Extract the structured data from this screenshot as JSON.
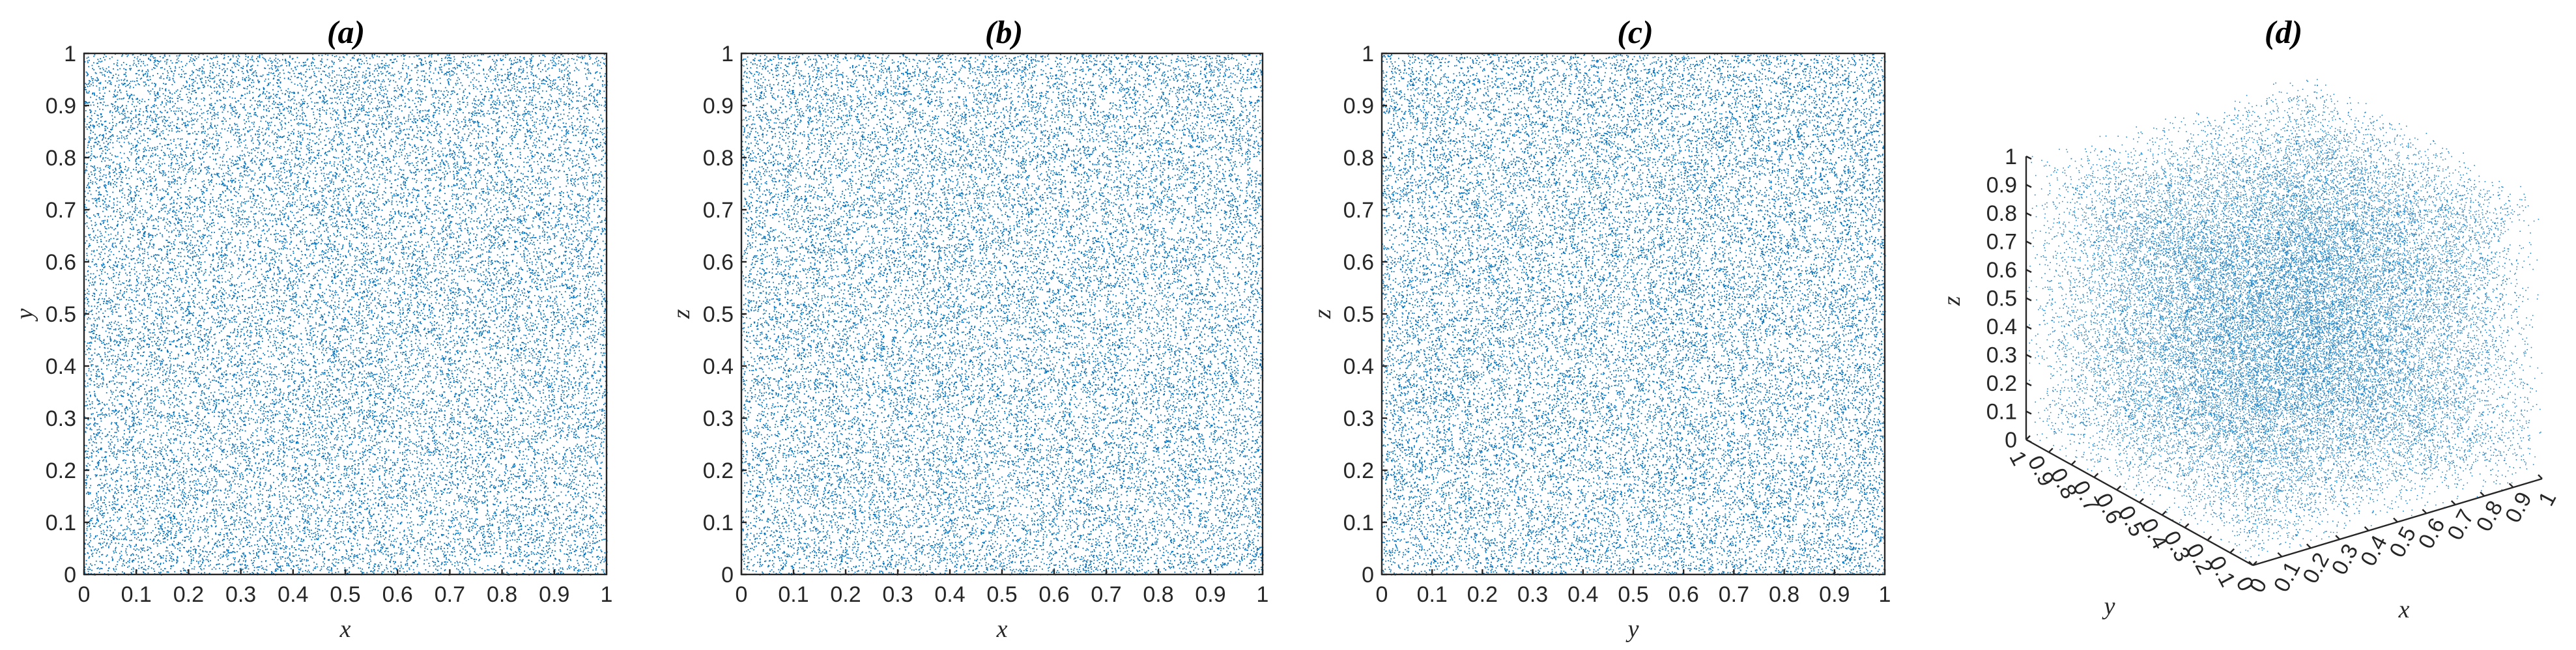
{
  "chart_data": [
    {
      "type": "scatter",
      "title": "(a)",
      "xlabel": "x",
      "ylabel": "y",
      "xlim": [
        0,
        1
      ],
      "ylim": [
        0,
        1
      ],
      "xticks": [
        "0",
        "0.1",
        "0.2",
        "0.3",
        "0.4",
        "0.5",
        "0.6",
        "0.7",
        "0.8",
        "0.9",
        "1"
      ],
      "yticks": [
        "0",
        "0.1",
        "0.2",
        "0.3",
        "0.4",
        "0.5",
        "0.6",
        "0.7",
        "0.8",
        "0.9",
        "1"
      ],
      "distribution": "uniform random points on [0,1] x [0,1]",
      "color": "#0072BD",
      "grid": false
    },
    {
      "type": "scatter",
      "title": "(b)",
      "xlabel": "x",
      "ylabel": "z",
      "xlim": [
        0,
        1
      ],
      "ylim": [
        0,
        1
      ],
      "xticks": [
        "0",
        "0.1",
        "0.2",
        "0.3",
        "0.4",
        "0.5",
        "0.6",
        "0.7",
        "0.8",
        "0.9",
        "1"
      ],
      "yticks": [
        "0",
        "0.1",
        "0.2",
        "0.3",
        "0.4",
        "0.5",
        "0.6",
        "0.7",
        "0.8",
        "0.9",
        "1"
      ],
      "distribution": "uniform random points on [0,1] x [0,1]",
      "color": "#0072BD",
      "grid": false
    },
    {
      "type": "scatter",
      "title": "(c)",
      "xlabel": "y",
      "ylabel": "z",
      "xlim": [
        0,
        1
      ],
      "ylim": [
        0,
        1
      ],
      "xticks": [
        "0",
        "0.1",
        "0.2",
        "0.3",
        "0.4",
        "0.5",
        "0.6",
        "0.7",
        "0.8",
        "0.9",
        "1"
      ],
      "yticks": [
        "0",
        "0.1",
        "0.2",
        "0.3",
        "0.4",
        "0.5",
        "0.6",
        "0.7",
        "0.8",
        "0.9",
        "1"
      ],
      "distribution": "uniform random points on [0,1] x [0,1]",
      "color": "#0072BD",
      "grid": false
    },
    {
      "type": "scatter",
      "title": "(d)",
      "xlabel": "x",
      "ylabel": "y",
      "zlabel": "z",
      "xlim": [
        0,
        1
      ],
      "ylim": [
        0,
        1
      ],
      "zlim": [
        0,
        1
      ],
      "xticks": [
        "0",
        "0.1",
        "0.2",
        "0.3",
        "0.4",
        "0.5",
        "0.6",
        "0.7",
        "0.8",
        "0.9",
        "1"
      ],
      "yticks": [
        "0",
        "0.1",
        "0.2",
        "0.3",
        "0.4",
        "0.5",
        "0.6",
        "0.7",
        "0.8",
        "0.9",
        "1"
      ],
      "zticks": [
        "0",
        "0.1",
        "0.2",
        "0.3",
        "0.4",
        "0.5",
        "0.6",
        "0.7",
        "0.8",
        "0.9",
        "1"
      ],
      "distribution": "uniform random points in unit cube, 3D view",
      "color": "#0072BD",
      "grid": false
    }
  ]
}
